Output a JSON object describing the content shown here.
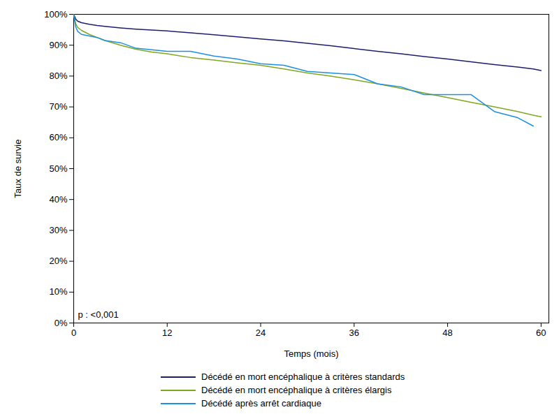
{
  "chart_data": {
    "type": "line",
    "x_label": "Temps (mois)",
    "y_label": "Taux de survie",
    "annotation": "p : <0,001",
    "xlim": [
      0,
      61
    ],
    "xticks": [
      0,
      12,
      24,
      36,
      48,
      60
    ],
    "ylim": [
      0,
      100
    ],
    "yticks": [
      {
        "value": 0,
        "label": "0%"
      },
      {
        "value": 10,
        "label": "10%"
      },
      {
        "value": 20,
        "label": "20%"
      },
      {
        "value": 30,
        "label": "30%"
      },
      {
        "value": 40,
        "label": "40%"
      },
      {
        "value": 50,
        "label": "50%"
      },
      {
        "value": 60,
        "label": "60%"
      },
      {
        "value": 70,
        "label": "70%"
      },
      {
        "value": 80,
        "label": "80%"
      },
      {
        "value": 90,
        "label": "90%"
      },
      {
        "value": 100,
        "label": "100%"
      }
    ],
    "grid": false,
    "legend": "bottom",
    "x": [
      0,
      0.25,
      0.5,
      1,
      2,
      3,
      4,
      6,
      8,
      10,
      12,
      15,
      18,
      21,
      24,
      27,
      30,
      33,
      36,
      39,
      42,
      45,
      48,
      51,
      54,
      57,
      59,
      60
    ],
    "series": [
      {
        "name": "Décédé en mort encéphalique à critères standards",
        "color": "#1b1f6e",
        "values": [
          100,
          98.5,
          97.8,
          97.3,
          96.8,
          96.4,
          96.1,
          95.6,
          95.2,
          94.9,
          94.6,
          94.0,
          93.4,
          92.7,
          92.0,
          91.4,
          90.6,
          89.8,
          88.9,
          88.0,
          87.2,
          86.3,
          85.5,
          84.6,
          83.7,
          82.9,
          82.3,
          81.8
        ]
      },
      {
        "name": "Décédé en mort encéphalique à critères élargis",
        "color": "#7fa821",
        "values": [
          100,
          97,
          95.8,
          94.8,
          93.5,
          92.5,
          91.5,
          90.0,
          88.7,
          87.8,
          87.2,
          86.0,
          85.2,
          84.3,
          83.5,
          82.3,
          81.0,
          80.0,
          78.8,
          77.5,
          76.0,
          74.5,
          73.0,
          71.5,
          70.0,
          68.5,
          67.3,
          66.8
        ]
      },
      {
        "name": "Décédé après arrêt cardiaque",
        "color": "#1f8fe0",
        "values": [
          100,
          96,
          94.5,
          93.5,
          93.0,
          92.5,
          91.5,
          90.8,
          89.0,
          88.5,
          88.0,
          88.0,
          86.5,
          85.5,
          84.0,
          83.5,
          81.5,
          81.0,
          80.5,
          77.5,
          76.5,
          74.0,
          74.0,
          74.0,
          68.5,
          66.5,
          63.8,
          null
        ]
      }
    ]
  }
}
